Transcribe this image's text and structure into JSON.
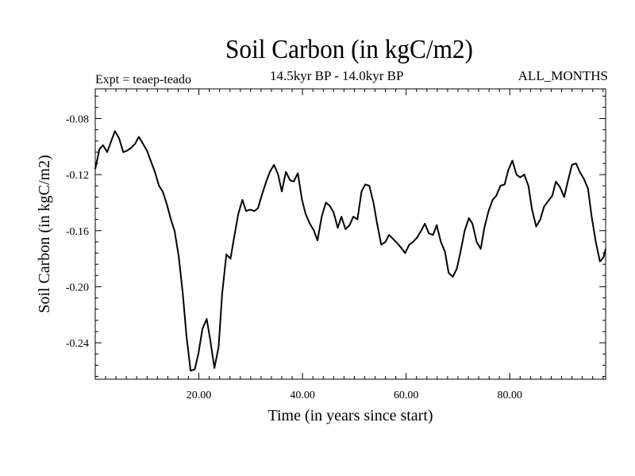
{
  "chart_data": {
    "type": "line",
    "title": "Soil Carbon (in kgC/m2)",
    "subtitle": "14.5kyr BP - 14.0kyr BP",
    "left_note": "Expt = teaep-teado",
    "right_note": "ALL_MONTHS",
    "xlabel": "Time (in years since start)",
    "ylabel": "Soil Carbon (in kgC/m2)",
    "xlim": [
      0.0,
      98.5
    ],
    "ylim": [
      -0.266,
      -0.0588
    ],
    "x_ticks": [
      20,
      40,
      60,
      80
    ],
    "x_tick_labels": [
      "20.00",
      "40.00",
      "60.00",
      "80.00"
    ],
    "y_ticks": [
      -0.08,
      -0.12,
      -0.16,
      -0.2,
      -0.24
    ],
    "y_tick_labels": [
      "-0.08",
      "-0.12",
      "-0.16",
      "-0.20",
      "-0.24"
    ],
    "grid": false,
    "series": [
      {
        "x": [
          0.0,
          0.8,
          1.5,
          2.3,
          3.1,
          3.8,
          4.6,
          5.4,
          6.1,
          6.9,
          7.7,
          8.4,
          9.2,
          10.0,
          10.7,
          11.5,
          12.3,
          13.0,
          13.8,
          14.6,
          15.3,
          16.1,
          16.9,
          17.6,
          18.4,
          19.2,
          19.9,
          20.7,
          21.5,
          22.2,
          23.0,
          23.8,
          24.5,
          25.3,
          26.1,
          26.8,
          27.6,
          28.4,
          29.1,
          29.9,
          30.7,
          31.4,
          32.2,
          33.0,
          33.7,
          34.5,
          35.3,
          36.0,
          36.8,
          37.6,
          38.3,
          39.1,
          39.9,
          40.6,
          41.4,
          42.2,
          42.9,
          43.7,
          44.5,
          45.2,
          46.0,
          46.8,
          47.5,
          48.3,
          49.1,
          49.8,
          50.6,
          51.4,
          52.1,
          52.9,
          53.7,
          54.4,
          55.2,
          56.0,
          56.7,
          57.5,
          58.3,
          59.0,
          59.8,
          60.6,
          61.3,
          62.1,
          62.9,
          63.6,
          64.4,
          65.2,
          65.9,
          66.7,
          67.5,
          68.2,
          69.0,
          69.8,
          70.5,
          71.3,
          72.1,
          72.8,
          73.6,
          74.4,
          75.1,
          75.9,
          76.7,
          77.4,
          78.2,
          79.0,
          79.7,
          80.5,
          81.3,
          82.0,
          82.8,
          83.6,
          84.3,
          85.1,
          85.9,
          86.6,
          87.4,
          88.2,
          88.9,
          89.7,
          90.5,
          91.2,
          92.0,
          92.8,
          93.5,
          94.3,
          95.1,
          95.8,
          96.6,
          97.4,
          98.1,
          98.5
        ],
        "y": [
          -0.116,
          -0.102,
          -0.099,
          -0.104,
          -0.096,
          -0.089,
          -0.094,
          -0.104,
          -0.103,
          -0.101,
          -0.098,
          -0.093,
          -0.098,
          -0.103,
          -0.11,
          -0.118,
          -0.128,
          -0.132,
          -0.141,
          -0.152,
          -0.16,
          -0.178,
          -0.205,
          -0.235,
          -0.26,
          -0.259,
          -0.248,
          -0.23,
          -0.223,
          -0.238,
          -0.258,
          -0.243,
          -0.205,
          -0.177,
          -0.18,
          -0.165,
          -0.148,
          -0.138,
          -0.146,
          -0.145,
          -0.146,
          -0.144,
          -0.134,
          -0.125,
          -0.118,
          -0.113,
          -0.12,
          -0.132,
          -0.118,
          -0.124,
          -0.125,
          -0.119,
          -0.138,
          -0.148,
          -0.155,
          -0.16,
          -0.167,
          -0.15,
          -0.14,
          -0.142,
          -0.147,
          -0.158,
          -0.15,
          -0.159,
          -0.156,
          -0.15,
          -0.152,
          -0.132,
          -0.127,
          -0.128,
          -0.14,
          -0.155,
          -0.17,
          -0.168,
          -0.163,
          -0.166,
          -0.169,
          -0.172,
          -0.176,
          -0.17,
          -0.168,
          -0.165,
          -0.16,
          -0.155,
          -0.162,
          -0.163,
          -0.156,
          -0.168,
          -0.175,
          -0.19,
          -0.193,
          -0.187,
          -0.175,
          -0.16,
          -0.151,
          -0.155,
          -0.168,
          -0.173,
          -0.158,
          -0.146,
          -0.138,
          -0.135,
          -0.128,
          -0.127,
          -0.117,
          -0.11,
          -0.12,
          -0.122,
          -0.12,
          -0.128,
          -0.145,
          -0.157,
          -0.152,
          -0.143,
          -0.139,
          -0.135,
          -0.125,
          -0.129,
          -0.136,
          -0.125,
          -0.113,
          -0.112,
          -0.118,
          -0.123,
          -0.13,
          -0.15,
          -0.168,
          -0.182,
          -0.179,
          -0.173
        ]
      }
    ]
  }
}
